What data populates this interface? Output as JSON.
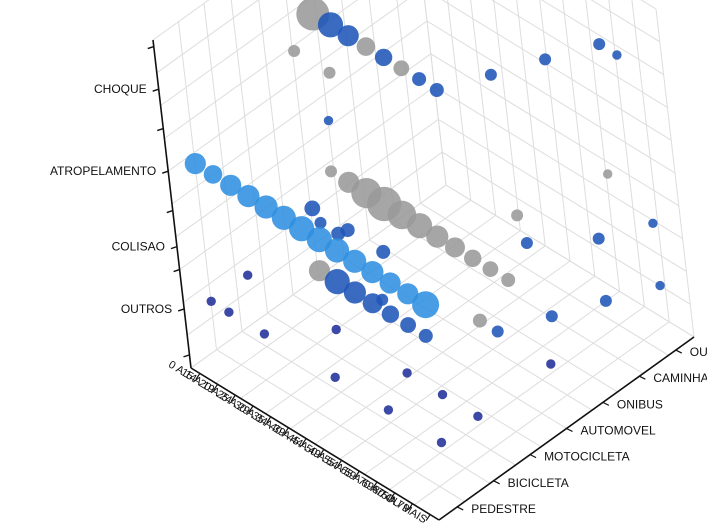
{
  "chart_data": {
    "type": "scatter",
    "variant": "3d-bubble",
    "title": "",
    "grid": true,
    "legend": "none",
    "z_axis": {
      "label": "",
      "categories": [
        "OUTROS",
        "COLISAO",
        "ATROPELAMENTO",
        "CHOQUE"
      ]
    },
    "x_axis": {
      "label": "",
      "categories": [
        "0 A 14",
        "15 A 19",
        "20 A 24",
        "25 A 29",
        "30 A 34",
        "35 A 39",
        "40 A 44",
        "45 A 49",
        "50 A 54",
        "55 A 59",
        "65 A 69",
        "70 A 74",
        "75 A 79",
        "80 OU MAIS"
      ]
    },
    "y_axis": {
      "label": "",
      "categories": [
        "PEDESTRE",
        "BICICLETA",
        "MOTOCICLETA",
        "AUTOMOVEL",
        "ONIBUS",
        "CAMINHAO",
        "OUTROS"
      ]
    },
    "colors": {
      "blue": "#1f56b8",
      "navy": "#22309a",
      "light_blue": "#2f8fe0",
      "gray": "#9a9a9a",
      "axis": "#111111",
      "grid": "#dddddd"
    },
    "series": [
      {
        "group": "CHOQUE",
        "points": [
          {
            "x": "0 A 14",
            "y": "OUTROS",
            "size": 1,
            "color": "blue"
          },
          {
            "x": "15 A 19",
            "y": "AUTOMOVEL",
            "size": 22,
            "color": "gray"
          },
          {
            "x": "20 A 24",
            "y": "AUTOMOVEL",
            "size": 12,
            "color": "blue"
          },
          {
            "x": "25 A 29",
            "y": "AUTOMOVEL",
            "size": 8,
            "color": "blue"
          },
          {
            "x": "30 A 34",
            "y": "AUTOMOVEL",
            "size": 6,
            "color": "gray"
          },
          {
            "x": "35 A 39",
            "y": "AUTOMOVEL",
            "size": 5,
            "color": "blue"
          },
          {
            "x": "40 A 44",
            "y": "AUTOMOVEL",
            "size": 4,
            "color": "gray"
          },
          {
            "x": "45 A 49",
            "y": "AUTOMOVEL",
            "size": 3,
            "color": "blue"
          },
          {
            "x": "50 A 54",
            "y": "AUTOMOVEL",
            "size": 3,
            "color": "blue"
          },
          {
            "x": "55 A 59",
            "y": "ONIBUS",
            "size": 2,
            "color": "blue"
          },
          {
            "x": "65 A 69",
            "y": "CAMINHAO",
            "size": 2,
            "color": "blue"
          },
          {
            "x": "70 A 74",
            "y": "OUTROS",
            "size": 2,
            "color": "blue"
          },
          {
            "x": "75 A 79",
            "y": "OUTROS",
            "size": 1,
            "color": "blue"
          },
          {
            "x": "20 A 24",
            "y": "MOTOCICLETA",
            "size": 2,
            "color": "gray"
          },
          {
            "x": "30 A 34",
            "y": "MOTOCICLETA",
            "size": 2,
            "color": "gray"
          },
          {
            "x": "40 A 44",
            "y": "BICICLETA",
            "size": 1,
            "color": "blue"
          }
        ]
      },
      {
        "group": "ATROPELAMENTO",
        "points": [
          {
            "x": "0 A 14",
            "y": "PEDESTRE",
            "size": 8,
            "color": "light_blue"
          },
          {
            "x": "15 A 19",
            "y": "PEDESTRE",
            "size": 6,
            "color": "light_blue"
          },
          {
            "x": "20 A 24",
            "y": "PEDESTRE",
            "size": 8,
            "color": "light_blue"
          },
          {
            "x": "25 A 29",
            "y": "PEDESTRE",
            "size": 9,
            "color": "light_blue"
          },
          {
            "x": "30 A 34",
            "y": "PEDESTRE",
            "size": 10,
            "color": "light_blue"
          },
          {
            "x": "35 A 39",
            "y": "PEDESTRE",
            "size": 11,
            "color": "light_blue"
          },
          {
            "x": "40 A 44",
            "y": "PEDESTRE",
            "size": 12,
            "color": "light_blue"
          },
          {
            "x": "45 A 49",
            "y": "PEDESTRE",
            "size": 12,
            "color": "light_blue"
          },
          {
            "x": "50 A 54",
            "y": "PEDESTRE",
            "size": 11,
            "color": "light_blue"
          },
          {
            "x": "55 A 59",
            "y": "PEDESTRE",
            "size": 10,
            "color": "light_blue"
          },
          {
            "x": "65 A 69",
            "y": "PEDESTRE",
            "size": 9,
            "color": "light_blue"
          },
          {
            "x": "70 A 74",
            "y": "PEDESTRE",
            "size": 8,
            "color": "light_blue"
          },
          {
            "x": "75 A 79",
            "y": "PEDESTRE",
            "size": 8,
            "color": "light_blue"
          },
          {
            "x": "80 OU MAIS",
            "y": "PEDESTRE",
            "size": 14,
            "color": "light_blue"
          },
          {
            "x": "75 A 79",
            "y": "AUTOMOVEL",
            "size": 2,
            "color": "gray"
          },
          {
            "x": "80 OU MAIS",
            "y": "CAMINHAO",
            "size": 1,
            "color": "gray"
          }
        ]
      },
      {
        "group": "COLISAO",
        "points": [
          {
            "x": "15 A 19",
            "y": "AUTOMOVEL",
            "size": 2,
            "color": "gray"
          },
          {
            "x": "20 A 24",
            "y": "AUTOMOVEL",
            "size": 8,
            "color": "gray"
          },
          {
            "x": "25 A 29",
            "y": "AUTOMOVEL",
            "size": 18,
            "color": "gray"
          },
          {
            "x": "30 A 34",
            "y": "AUTOMOVEL",
            "size": 24,
            "color": "gray"
          },
          {
            "x": "35 A 39",
            "y": "AUTOMOVEL",
            "size": 16,
            "color": "gray"
          },
          {
            "x": "40 A 44",
            "y": "AUTOMOVEL",
            "size": 12,
            "color": "gray"
          },
          {
            "x": "45 A 49",
            "y": "AUTOMOVEL",
            "size": 9,
            "color": "gray"
          },
          {
            "x": "50 A 54",
            "y": "AUTOMOVEL",
            "size": 7,
            "color": "gray"
          },
          {
            "x": "55 A 59",
            "y": "AUTOMOVEL",
            "size": 5,
            "color": "gray"
          },
          {
            "x": "65 A 69",
            "y": "AUTOMOVEL",
            "size": 4,
            "color": "gray"
          },
          {
            "x": "70 A 74",
            "y": "AUTOMOVEL",
            "size": 3,
            "color": "gray"
          },
          {
            "x": "20 A 24",
            "y": "MOTOCICLETA",
            "size": 4,
            "color": "blue"
          },
          {
            "x": "30 A 34",
            "y": "MOTOCICLETA",
            "size": 3,
            "color": "blue"
          },
          {
            "x": "40 A 44",
            "y": "MOTOCICLETA",
            "size": 3,
            "color": "blue"
          },
          {
            "x": "50 A 54",
            "y": "BICICLETA",
            "size": 2,
            "color": "blue"
          },
          {
            "x": "65 A 69",
            "y": "ONIBUS",
            "size": 2,
            "color": "blue"
          },
          {
            "x": "75 A 79",
            "y": "CAMINHAO",
            "size": 2,
            "color": "blue"
          },
          {
            "x": "80 OU MAIS",
            "y": "OUTROS",
            "size": 1,
            "color": "blue"
          }
        ]
      },
      {
        "group": "OUTROS",
        "points": [
          {
            "x": "0 A 14",
            "y": "AUTOMOVEL",
            "size": 2,
            "color": "blue"
          },
          {
            "x": "15 A 19",
            "y": "AUTOMOVEL",
            "size": 3,
            "color": "blue"
          },
          {
            "x": "20 A 24",
            "y": "MOTOCICLETA",
            "size": 8,
            "color": "gray"
          },
          {
            "x": "25 A 29",
            "y": "MOTOCICLETA",
            "size": 12,
            "color": "blue"
          },
          {
            "x": "30 A 34",
            "y": "MOTOCICLETA",
            "size": 9,
            "color": "blue"
          },
          {
            "x": "35 A 39",
            "y": "MOTOCICLETA",
            "size": 7,
            "color": "blue"
          },
          {
            "x": "40 A 44",
            "y": "MOTOCICLETA",
            "size": 5,
            "color": "blue"
          },
          {
            "x": "45 A 49",
            "y": "MOTOCICLETA",
            "size": 4,
            "color": "blue"
          },
          {
            "x": "50 A 54",
            "y": "MOTOCICLETA",
            "size": 3,
            "color": "blue"
          },
          {
            "x": "55 A 59",
            "y": "AUTOMOVEL",
            "size": 3,
            "color": "gray"
          },
          {
            "x": "65 A 69",
            "y": "AUTOMOVEL",
            "size": 2,
            "color": "blue"
          },
          {
            "x": "70 A 74",
            "y": "ONIBUS",
            "size": 2,
            "color": "blue"
          },
          {
            "x": "75 A 79",
            "y": "CAMINHAO",
            "size": 2,
            "color": "blue"
          },
          {
            "x": "80 OU MAIS",
            "y": "OUTROS",
            "size": 1,
            "color": "blue"
          },
          {
            "x": "0 A 14",
            "y": "BICICLETA",
            "size": 1,
            "color": "navy"
          },
          {
            "x": "15 A 19",
            "y": "PEDESTRE",
            "size": 1,
            "color": "navy"
          },
          {
            "x": "35 A 39",
            "y": "BICICLETA",
            "size": 1,
            "color": "navy"
          },
          {
            "x": "55 A 59",
            "y": "BICICLETA",
            "size": 1,
            "color": "navy"
          },
          {
            "x": "70 A 74",
            "y": "BICICLETA",
            "size": 1,
            "color": "navy"
          },
          {
            "x": "0 A 14",
            "y": "PEDESTRE",
            "size": 1,
            "color": "navy"
          },
          {
            "x": "25 A 29",
            "y": "PEDESTRE",
            "size": 1,
            "color": "navy"
          },
          {
            "x": "45 A 49",
            "y": "PEDESTRE",
            "size": 1,
            "color": "navy"
          },
          {
            "x": "65 A 69",
            "y": "PEDESTRE",
            "size": 1,
            "color": "navy"
          },
          {
            "x": "80 OU MAIS",
            "y": "PEDESTRE",
            "size": 1,
            "color": "navy"
          },
          {
            "x": "80 OU MAIS",
            "y": "AUTOMOVEL",
            "size": 1,
            "color": "navy"
          },
          {
            "x": "80 OU MAIS",
            "y": "BICICLETA",
            "size": 1,
            "color": "navy"
          }
        ]
      }
    ]
  }
}
